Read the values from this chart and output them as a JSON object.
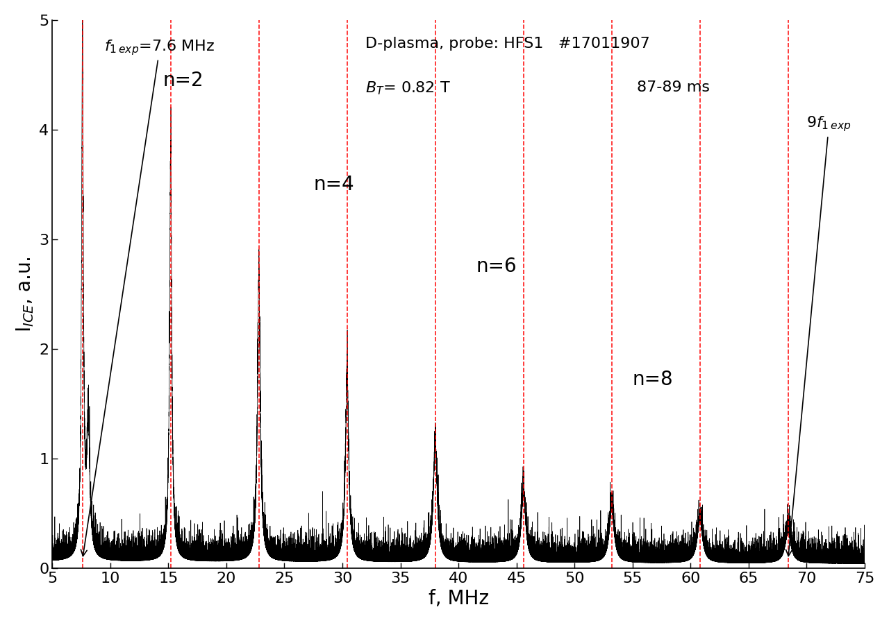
{
  "title_line1": "D-plasma, probe: HFS1   #17011907",
  "title_line2_bt": "B",
  "title_line2_rest": "= 0.82 T",
  "title_line2_time": "87-89 ms",
  "xlabel": "f, MHz",
  "ylabel": "I$_{ICE}$, a.u.",
  "xlim": [
    5,
    75
  ],
  "ylim": [
    0,
    5
  ],
  "yticks": [
    0,
    1,
    2,
    3,
    4,
    5
  ],
  "xticks": [
    5,
    10,
    15,
    20,
    25,
    30,
    35,
    40,
    45,
    50,
    55,
    60,
    65,
    70,
    75
  ],
  "f1": 7.6,
  "dashed_lines": [
    7.6,
    15.2,
    22.8,
    30.4,
    38.0,
    45.6,
    53.2,
    60.8,
    68.4
  ],
  "peak_heights": [
    4.95,
    3.8,
    2.6,
    1.72,
    1.05,
    0.62,
    0.48,
    0.38,
    0.28
  ],
  "peak_positions": [
    7.6,
    15.2,
    22.8,
    30.4,
    38.0,
    45.6,
    53.2,
    60.8,
    68.4
  ],
  "peak_widths": [
    0.18,
    0.22,
    0.28,
    0.32,
    0.4,
    0.45,
    0.5,
    0.55,
    0.6
  ],
  "noise_amplitude": 0.06,
  "background_color": "#ffffff",
  "line_color": "#000000",
  "dashed_color": "#ff0000"
}
